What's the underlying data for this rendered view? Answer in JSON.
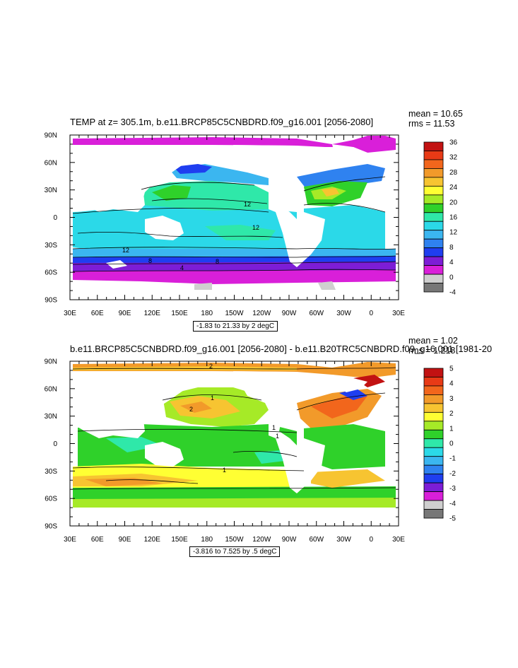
{
  "chart_data": [
    {
      "type": "heatmap",
      "title": "TEMP at z= 305.1m, b.e11.BRCP85C5CNBDRD.f09_g16.001 [2056-2080]",
      "stats": {
        "mean": "mean = 10.65",
        "rms": "rms = 11.53"
      },
      "contour_info": "-1.83 to 21.33 by 2 degC",
      "x_ticks": [
        "30E",
        "60E",
        "90E",
        "120E",
        "150E",
        "180",
        "150W",
        "120W",
        "90W",
        "60W",
        "30W",
        "0",
        "30E"
      ],
      "y_ticks": [
        "90N",
        "60N",
        "30N",
        "0",
        "30S",
        "60S",
        "90S"
      ],
      "colorbar": {
        "levels": [
          "36",
          "32",
          "28",
          "24",
          "20",
          "16",
          "12",
          "8",
          "4",
          "0",
          "-4"
        ],
        "colors": [
          "#c21212",
          "#e83a16",
          "#f2661c",
          "#f29a2a",
          "#f7c431",
          "#ffff33",
          "#a6ea27",
          "#2fd12a",
          "#2fe8a9",
          "#2bd9e8",
          "#3bb6f0",
          "#2f82f0",
          "#1f3ef0",
          "#7d1dd6",
          "#d91fd9",
          "#cfcfcf",
          "#777777"
        ]
      },
      "contour_labels": [
        "12",
        "12",
        "12",
        "8",
        "8",
        "4"
      ]
    },
    {
      "type": "heatmap",
      "title": "b.e11.BRCP85C5CNBDRD.f09_g16.001 [2056-2080] - b.e11.B20TRC5CNBDRD.f09_g16.001 [1981-20",
      "stats": {
        "mean": "mean = 1.02",
        "rms": "rms = 1.218"
      },
      "contour_info": "-3.816 to 7.525 by .5 degC",
      "x_ticks": [
        "30E",
        "60E",
        "90E",
        "120E",
        "150E",
        "180",
        "150W",
        "120W",
        "90W",
        "60W",
        "30W",
        "0",
        "30E"
      ],
      "y_ticks": [
        "90N",
        "60N",
        "30N",
        "0",
        "30S",
        "60S",
        "90S"
      ],
      "colorbar": {
        "levels": [
          "5",
          "4",
          "3",
          "2",
          "1",
          "0",
          "-1",
          "-2",
          "-3",
          "-4",
          "-5"
        ],
        "colors": [
          "#c21212",
          "#e83a16",
          "#f2661c",
          "#f29a2a",
          "#f7c431",
          "#ffff33",
          "#a6ea27",
          "#2fd12a",
          "#2fe8a9",
          "#2bd9e8",
          "#3bb6f0",
          "#2f82f0",
          "#1f3ef0",
          "#7d1dd6",
          "#d91fd9",
          "#cfcfcf",
          "#777777"
        ]
      },
      "contour_labels": [
        "2",
        "2",
        "1",
        "1",
        "1",
        "1"
      ]
    }
  ]
}
